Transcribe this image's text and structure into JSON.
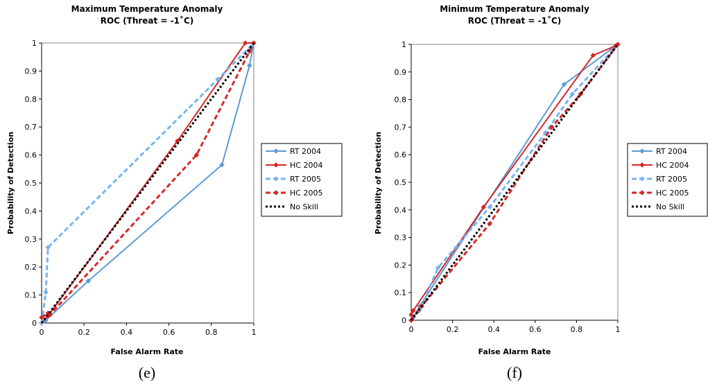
{
  "chart_data": [
    {
      "type": "line",
      "title": "Maximum Temperature Anomaly",
      "subtitle": "ROC (Threat = -1˚C)",
      "xlabel": "False Alarm Rate",
      "ylabel": "Probability of Detection",
      "caption": "(e)",
      "xlim": [
        0,
        1
      ],
      "ylim": [
        0,
        1
      ],
      "x_ticks": [
        "0",
        "0.2",
        "0.4",
        "0.6",
        "0.8",
        "1"
      ],
      "y_ticks": [
        "0",
        "0.1",
        "0.2",
        "0.3",
        "0.4",
        "0.5",
        "0.6",
        "0.7",
        "0.8",
        "0.9",
        "1"
      ],
      "grid": false,
      "legend_position": "right",
      "series": [
        {
          "name": "RT 2004",
          "color": "#5b9bd5",
          "style": "solid",
          "marker": "diamond",
          "x": [
            0,
            0.02,
            0.22,
            0.85,
            0.98,
            1.0
          ],
          "y": [
            0,
            0.01,
            0.15,
            0.565,
            0.92,
            1.0
          ]
        },
        {
          "name": "HC 2004",
          "color": "#d62728",
          "style": "solid",
          "marker": "diamond",
          "x": [
            0,
            0.03,
            0.64,
            0.96,
            1.0
          ],
          "y": [
            0,
            0.025,
            0.65,
            1.0,
            1.0
          ]
        },
        {
          "name": "RT 2005",
          "color": "#74b5f0",
          "style": "dashed",
          "marker": "diamond",
          "x": [
            0,
            0.02,
            0.03,
            0.83,
            1.0
          ],
          "y": [
            0,
            0.11,
            0.27,
            0.87,
            1.0
          ]
        },
        {
          "name": "HC 2005",
          "color": "#d62728",
          "style": "dashed",
          "marker": "diamond",
          "x": [
            0,
            0.03,
            0.04,
            0.73,
            0.98,
            1.0
          ],
          "y": [
            0.02,
            0.035,
            0.03,
            0.6,
            0.97,
            1.0
          ]
        },
        {
          "name": "No Skill",
          "color": "#000000",
          "style": "dotted",
          "marker": "none",
          "x": [
            0,
            1
          ],
          "y": [
            0,
            1
          ]
        }
      ]
    },
    {
      "type": "line",
      "title": "Minimum Temperature Anomaly",
      "subtitle": "ROC (Threat = -1˚C)",
      "xlabel": "False Alarm Rate",
      "ylabel": "Probability of Detection",
      "caption": "(f)",
      "xlim": [
        0,
        1
      ],
      "ylim": [
        0,
        1
      ],
      "x_ticks": [
        "0",
        "0.2",
        "0.4",
        "0.6",
        "0.8",
        "1"
      ],
      "y_ticks": [
        "0",
        "0.1",
        "0.2",
        "0.3",
        "0.4",
        "0.5",
        "0.6",
        "0.7",
        "0.8",
        "0.9",
        "1"
      ],
      "grid": false,
      "legend_position": "right",
      "series": [
        {
          "name": "RT 2004",
          "color": "#5b9bd5",
          "style": "solid",
          "marker": "diamond",
          "x": [
            0,
            0.01,
            0.04,
            0.74,
            0.99,
            1.0
          ],
          "y": [
            0,
            0.01,
            0.05,
            0.855,
            0.995,
            1.0
          ]
        },
        {
          "name": "HC 2004",
          "color": "#d62728",
          "style": "solid",
          "marker": "diamond",
          "x": [
            0,
            0.01,
            0.35,
            0.88,
            0.99,
            1.0
          ],
          "y": [
            0.02,
            0.035,
            0.41,
            0.96,
            0.995,
            1.0
          ]
        },
        {
          "name": "RT 2005",
          "color": "#74b5f0",
          "style": "dashed",
          "marker": "diamond",
          "x": [
            0,
            0.04,
            0.13,
            0.38,
            0.65,
            0.78,
            1.0
          ],
          "y": [
            0,
            0.035,
            0.19,
            0.41,
            0.68,
            0.82,
            1.0
          ]
        },
        {
          "name": "HC 2005",
          "color": "#d62728",
          "style": "dashed",
          "marker": "diamond",
          "x": [
            0,
            0.05,
            0.38,
            0.68,
            0.82,
            1.0
          ],
          "y": [
            0,
            0.05,
            0.35,
            0.7,
            0.82,
            1.0
          ]
        },
        {
          "name": "No Skill",
          "color": "#000000",
          "style": "dotted",
          "marker": "none",
          "x": [
            0,
            1
          ],
          "y": [
            0,
            1
          ]
        }
      ]
    }
  ]
}
